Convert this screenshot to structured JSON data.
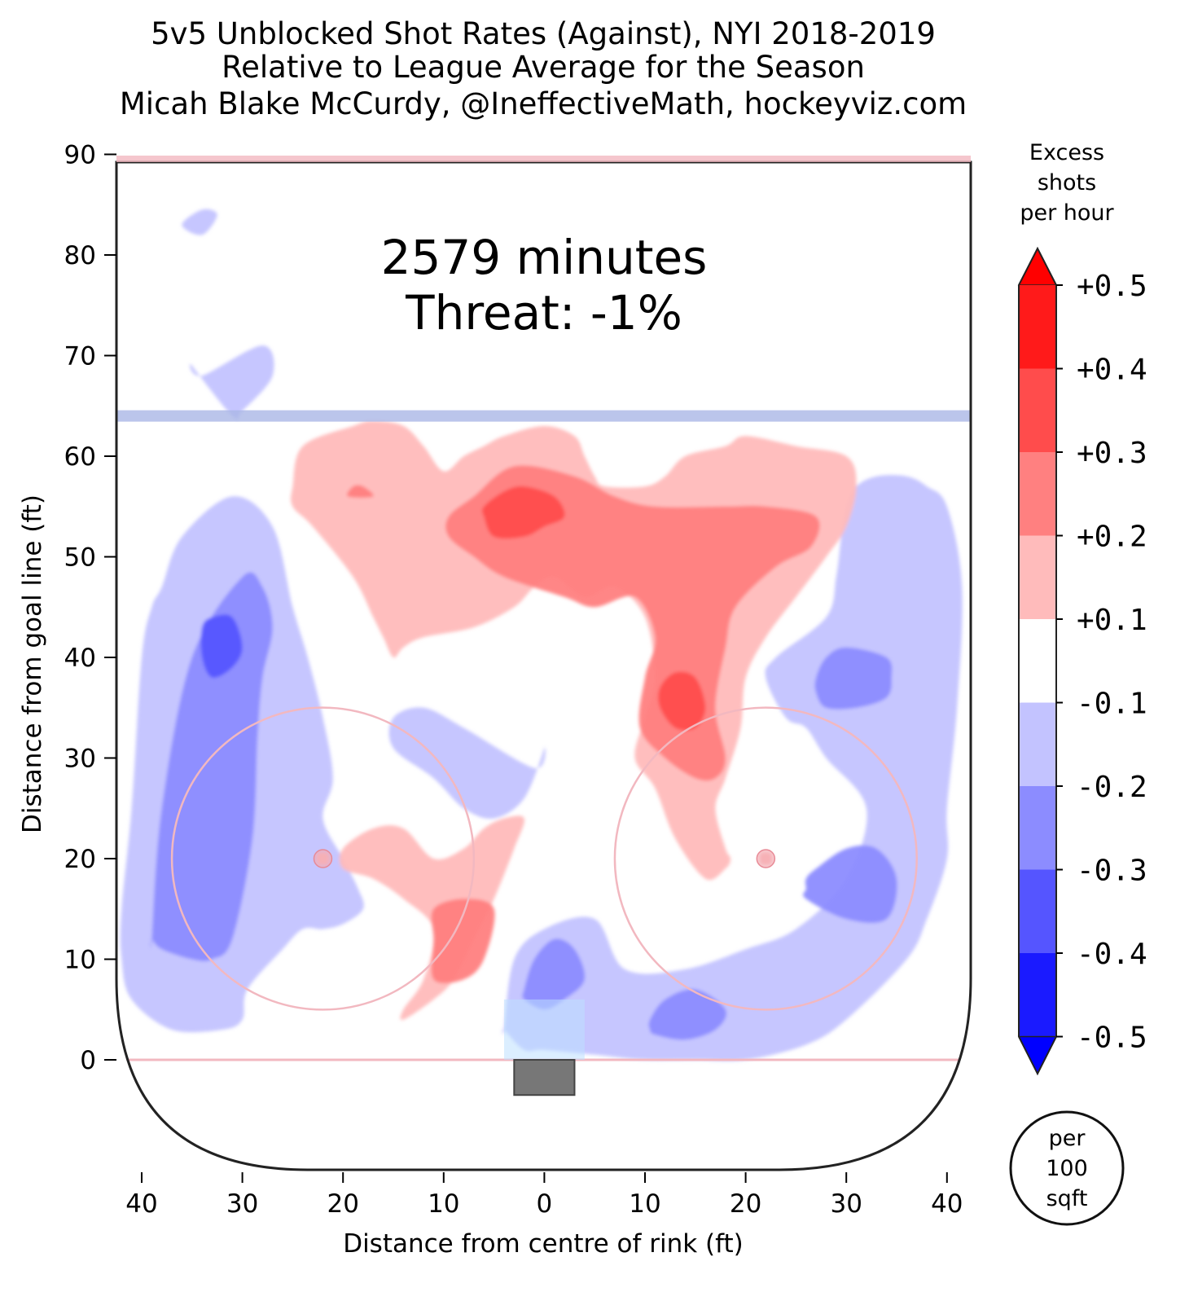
{
  "chart_data": {
    "type": "heatmap",
    "title_lines": [
      "5v5 Unblocked Shot Rates (Against), NYI 2018-2019",
      "Relative to League Average for the Season",
      "Micah Blake McCurdy, @IneffectiveMath, hockeyviz.com"
    ],
    "annotation": {
      "minutes": "2579 minutes",
      "threat": "Threat: -1%"
    },
    "xlabel": "Distance from centre of rink (ft)",
    "ylabel": "Distance from goal line (ft)",
    "xlim": [
      -42.5,
      42.5
    ],
    "ylim": [
      -11,
      90
    ],
    "x_ticks": [
      {
        "value": -40,
        "label": "40"
      },
      {
        "value": -30,
        "label": "30"
      },
      {
        "value": -20,
        "label": "20"
      },
      {
        "value": -10,
        "label": "10"
      },
      {
        "value": 0,
        "label": "0"
      },
      {
        "value": 10,
        "label": "10"
      },
      {
        "value": 20,
        "label": "20"
      },
      {
        "value": 30,
        "label": "30"
      },
      {
        "value": 40,
        "label": "40"
      }
    ],
    "y_ticks": [
      {
        "value": 0,
        "label": "0"
      },
      {
        "value": 10,
        "label": "10"
      },
      {
        "value": 20,
        "label": "20"
      },
      {
        "value": 30,
        "label": "30"
      },
      {
        "value": 40,
        "label": "40"
      },
      {
        "value": 50,
        "label": "50"
      },
      {
        "value": 60,
        "label": "60"
      },
      {
        "value": 70,
        "label": "70"
      },
      {
        "value": 80,
        "label": "80"
      },
      {
        "value": 90,
        "label": "90"
      }
    ],
    "colorbar": {
      "title_lines": [
        "Excess",
        "shots",
        "per hour"
      ],
      "tick_labels": [
        "+0.5",
        "+0.4",
        "+0.3",
        "+0.2",
        "+0.1",
        "-0.1",
        "-0.2",
        "-0.3",
        "-0.4",
        "-0.5"
      ],
      "levels": [
        {
          "range": [
            0.4,
            0.5
          ],
          "color": "#ff1a1a"
        },
        {
          "range": [
            0.3,
            0.4
          ],
          "color": "#ff4c4c"
        },
        {
          "range": [
            0.2,
            0.3
          ],
          "color": "#ff8080"
        },
        {
          "range": [
            0.1,
            0.2
          ],
          "color": "#ffbbbb"
        },
        {
          "range": [
            -0.1,
            0.1
          ],
          "color": "#ffffff"
        },
        {
          "range": [
            -0.2,
            -0.1
          ],
          "color": "#c3c3ff"
        },
        {
          "range": [
            -0.3,
            -0.2
          ],
          "color": "#8c8cff"
        },
        {
          "range": [
            -0.4,
            -0.3
          ],
          "color": "#5555ff"
        },
        {
          "range": [
            -0.5,
            -0.4
          ],
          "color": "#1a1aff"
        }
      ],
      "over_color": "#ff0000",
      "under_color": "#0000ff",
      "unit_circle_lines": [
        "per",
        "100",
        "sqft"
      ]
    },
    "rink": {
      "blue_line_y": 64,
      "goal_line_y": 0,
      "top_line_y": 89,
      "faceoff_circles": [
        {
          "x": -22,
          "y": 20,
          "r": 15
        },
        {
          "x": 22,
          "y": 20,
          "r": 15
        }
      ],
      "net": {
        "x": [
          -3,
          3
        ],
        "y": [
          -3.5,
          0
        ]
      },
      "crease": {
        "x": [
          -4,
          4
        ],
        "y": [
          0,
          6
        ]
      },
      "colors": {
        "blue_line": "#aab6e6",
        "red_line": "#f2b8c0",
        "boards": "#222222"
      }
    },
    "regions": [
      {
        "level": -0.1,
        "color": "#c3c3ff",
        "x": [
          -34,
          -36,
          -34,
          -32.5
        ],
        "y": [
          84.5,
          83,
          82,
          84
        ]
      },
      {
        "level": -0.1,
        "color": "#c3c3ff",
        "x": [
          -34,
          -28,
          -27,
          -30,
          -31,
          -35
        ],
        "y": [
          68,
          71,
          68,
          64.5,
          64,
          69
        ]
      },
      {
        "level": -0.1,
        "color": "#c3c3ff",
        "x": [
          -42,
          -41,
          -40,
          -39,
          -38,
          -36,
          -31,
          -27,
          -25,
          -23.5,
          -22,
          -21,
          -22,
          -20,
          -18.5,
          -18,
          -20,
          -22,
          -24,
          -26,
          -29.5,
          -30,
          -32,
          -37,
          -41,
          -42
        ],
        "y": [
          15,
          25,
          40,
          45,
          47,
          52,
          56,
          53,
          45,
          40,
          34,
          28,
          24,
          20,
          17,
          15,
          13.5,
          13,
          13,
          11,
          7,
          4,
          3,
          3,
          6,
          10
        ]
      },
      {
        "level": -0.2,
        "color": "#8c8cff",
        "x": [
          -39,
          -38,
          -35,
          -30,
          -28,
          -27,
          -28,
          -28.5,
          -29,
          -31,
          -33,
          -35,
          -38,
          -39
        ],
        "y": [
          12,
          25,
          40,
          48,
          47,
          43,
          38,
          32,
          22,
          12,
          10,
          10,
          11,
          12
        ]
      },
      {
        "level": -0.3,
        "color": "#5555ff",
        "x": [
          -34,
          -33,
          -31,
          -30,
          -31,
          -33,
          -34
        ],
        "y": [
          43,
          44,
          44,
          41,
          39,
          38,
          40
        ]
      },
      {
        "level": -0.1,
        "color": "#c3c3ff",
        "x": [
          -15,
          -12,
          -8,
          -1,
          0,
          -2,
          -5,
          -8,
          -11,
          -15
        ],
        "y": [
          34,
          35,
          33,
          29,
          31,
          26,
          24,
          25,
          28,
          31
        ]
      },
      {
        "level": -0.1,
        "color": "#c3c3ff",
        "x": [
          -4,
          -3,
          0,
          5,
          8,
          14,
          20,
          25,
          30,
          32,
          28,
          26,
          24,
          22,
          23,
          28,
          29,
          29.5,
          30,
          31,
          33,
          36,
          38,
          40,
          41.5,
          41,
          40,
          40,
          38,
          36,
          30,
          26,
          20,
          15,
          10,
          5,
          0,
          -2,
          -4
        ],
        "y": [
          3,
          10,
          13,
          14,
          9,
          9,
          11,
          13,
          18,
          25,
          30,
          33,
          34,
          38,
          40,
          44,
          48,
          52,
          55,
          57,
          58,
          58,
          57,
          55,
          47,
          35,
          25,
          20,
          14,
          10,
          4,
          1.5,
          0,
          0,
          0,
          0.5,
          1,
          1,
          3
        ]
      },
      {
        "level": -0.2,
        "color": "#8c8cff",
        "x": [
          27,
          28,
          30,
          34,
          34.5,
          34,
          31,
          28,
          27
        ],
        "y": [
          38,
          40,
          41,
          40,
          38,
          36,
          35,
          35,
          36.5
        ]
      },
      {
        "level": -0.2,
        "color": "#8c8cff",
        "x": [
          26,
          27,
          30,
          33,
          35,
          34,
          30,
          26,
          26
        ],
        "y": [
          18,
          19,
          21,
          21,
          18,
          14,
          14,
          16,
          17
        ]
      },
      {
        "level": -0.2,
        "color": "#8c8cff",
        "x": [
          10.5,
          12,
          15,
          18,
          17,
          14,
          11,
          10.5
        ],
        "y": [
          4,
          6,
          7,
          5,
          3,
          2,
          2.5,
          3
        ]
      },
      {
        "level": -0.2,
        "color": "#8c8cff",
        "x": [
          -2,
          -1,
          1,
          3,
          4,
          2,
          0,
          -2
        ],
        "y": [
          7,
          10,
          12,
          11,
          8,
          6,
          5,
          6
        ]
      },
      {
        "level": 0.1,
        "color": "#ffbbbb",
        "x": [
          -25,
          -24,
          -19,
          -17,
          -14,
          -12,
          -10,
          -8,
          -6,
          -4,
          0,
          3,
          4,
          5,
          6,
          10,
          12,
          14,
          18,
          20,
          25,
          30,
          31,
          30,
          28,
          25,
          22,
          20,
          19.5,
          18,
          17,
          18,
          18.5,
          18,
          16,
          13,
          11,
          9,
          10,
          11,
          10,
          7,
          4,
          1,
          -1,
          -3,
          -7,
          -12,
          -14,
          -15,
          -16,
          -17,
          -19,
          -23,
          -25
        ],
        "y": [
          57,
          61,
          63,
          63.5,
          63,
          61,
          58.5,
          60,
          61,
          62,
          63,
          62,
          60,
          58,
          57,
          57,
          58,
          60,
          61,
          62,
          61,
          60,
          57,
          53,
          50,
          46,
          42,
          38,
          33,
          28,
          25,
          21,
          20,
          19,
          18,
          22,
          27,
          30,
          34,
          38,
          44,
          47,
          46,
          48,
          47,
          45,
          43,
          42,
          41,
          40,
          42,
          44,
          48,
          53,
          55
        ]
      },
      {
        "level": 0.1,
        "color": "#ffbbbb",
        "x": [
          -20,
          -17,
          -14,
          -11,
          -8,
          -6,
          -4,
          -2,
          -3,
          -5,
          -7,
          -9,
          -11,
          -14,
          -14,
          -12,
          -11,
          -14,
          -17,
          -20
        ],
        "y": [
          21,
          23,
          23,
          20,
          21,
          23,
          24,
          24,
          21,
          16,
          12,
          8,
          6,
          4,
          5,
          8,
          13,
          16,
          18,
          19
        ]
      },
      {
        "level": 0.1,
        "color": "#ffbbbb",
        "x": [
          -22.5,
          -21.5,
          -21.5,
          -22.5
        ],
        "y": [
          20.5,
          20.5,
          19.5,
          19.5
        ]
      },
      {
        "level": 0.2,
        "color": "#ff8080",
        "x": [
          -9.5,
          -7,
          -3,
          3,
          7,
          11,
          18,
          22,
          27,
          26.5,
          23,
          19,
          18,
          17,
          18,
          17,
          15,
          12,
          9.5,
          10,
          11,
          9,
          5,
          2,
          -4,
          -7,
          -9.5
        ],
        "y": [
          54,
          56,
          59,
          58,
          56,
          55,
          55,
          55,
          54,
          51,
          49,
          45,
          41,
          35,
          30,
          28,
          28,
          30,
          33,
          38,
          42,
          46,
          45,
          46,
          48,
          50,
          52
        ]
      },
      {
        "level": 0.2,
        "color": "#ff8080",
        "x": [
          -11,
          -8,
          -5,
          -6,
          -8,
          -11,
          -11
        ],
        "y": [
          15,
          16,
          15,
          10,
          8,
          8,
          12
        ]
      },
      {
        "level": 0.2,
        "color": "#ff8080",
        "x": [
          -19,
          -18,
          -17,
          -19.5
        ],
        "y": [
          57,
          57,
          56,
          56
        ]
      },
      {
        "level": 0.3,
        "color": "#ff4c4c",
        "x": [
          -6,
          -4,
          -2,
          1,
          2,
          0,
          -2,
          -5,
          -6
        ],
        "y": [
          55,
          56.5,
          57,
          56,
          54,
          53,
          52,
          52,
          54
        ]
      },
      {
        "level": 0.3,
        "color": "#ff4c4c",
        "x": [
          11.5,
          13,
          15,
          16,
          15,
          13,
          11.5
        ],
        "y": [
          37,
          38.5,
          38,
          35,
          33,
          33,
          35
        ]
      },
      {
        "level": 0.1,
        "color": "#ffbbbb",
        "x": [
          21.5,
          22.5,
          22.5,
          21.5
        ],
        "y": [
          20.5,
          20.5,
          19.5,
          19.5
        ]
      }
    ]
  }
}
